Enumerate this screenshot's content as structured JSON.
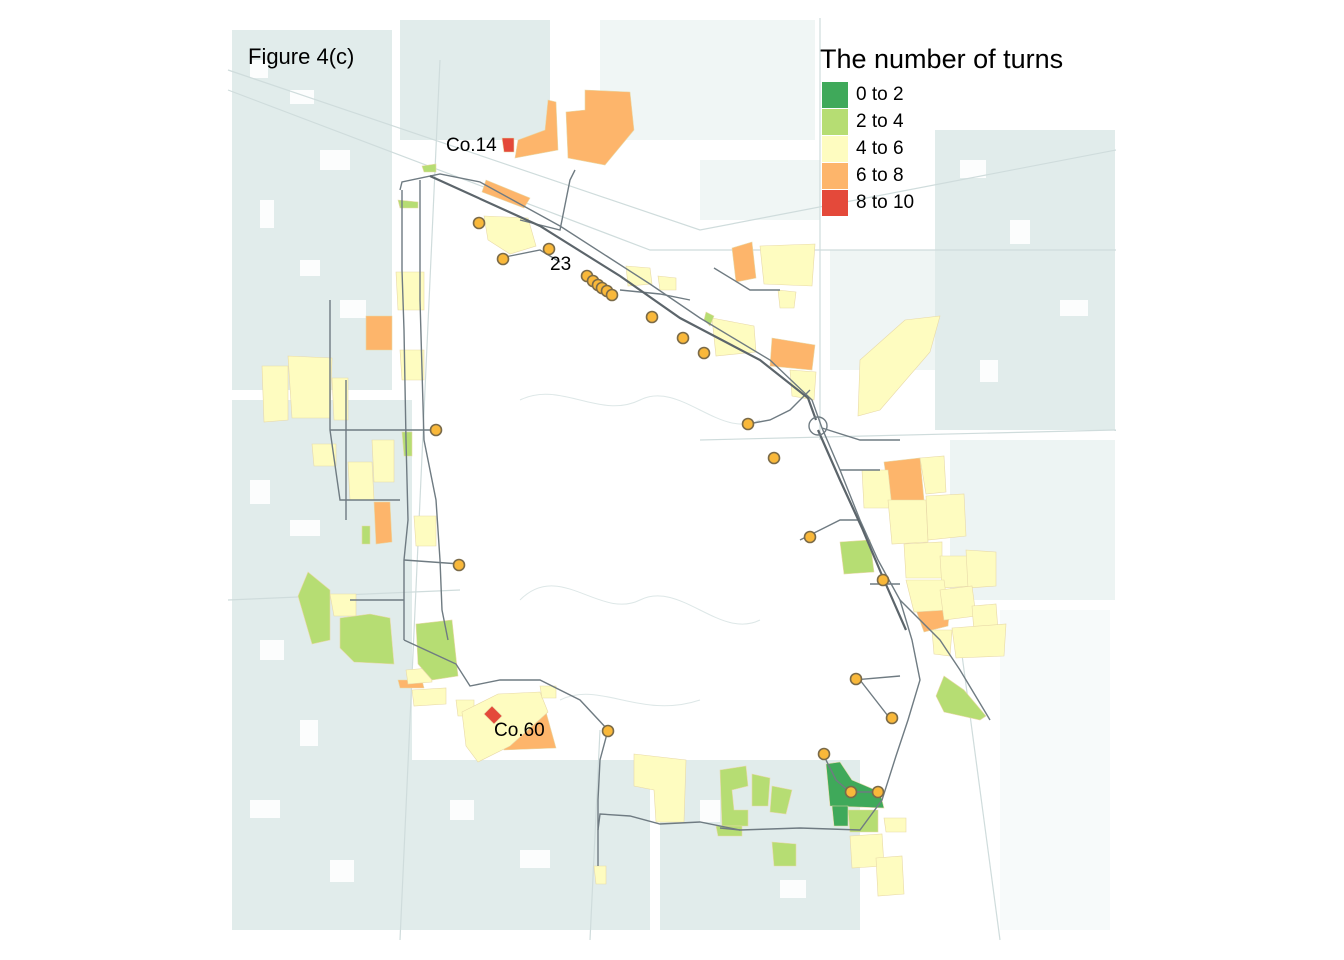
{
  "figure_label": "Figure 4(c)",
  "legend": {
    "title": "The number of turns",
    "items": [
      {
        "label": "0 to 2",
        "color": "#3fa95a"
      },
      {
        "label": "2 to 4",
        "color": "#b6dd73"
      },
      {
        "label": "4 to 6",
        "color": "#fefcc0"
      },
      {
        "label": "6 to 8",
        "color": "#fdb56b"
      },
      {
        "label": "8 to 10",
        "color": "#e4493a"
      }
    ]
  },
  "labels": {
    "co14": "Co.14",
    "stop23": "23",
    "co60": "Co.60"
  },
  "colors": {
    "background_buildings": "#dce9e8",
    "route_line": "#6f7b82",
    "stop_fill": "#f9b83a",
    "stop_stroke": "#7a6a48"
  }
}
